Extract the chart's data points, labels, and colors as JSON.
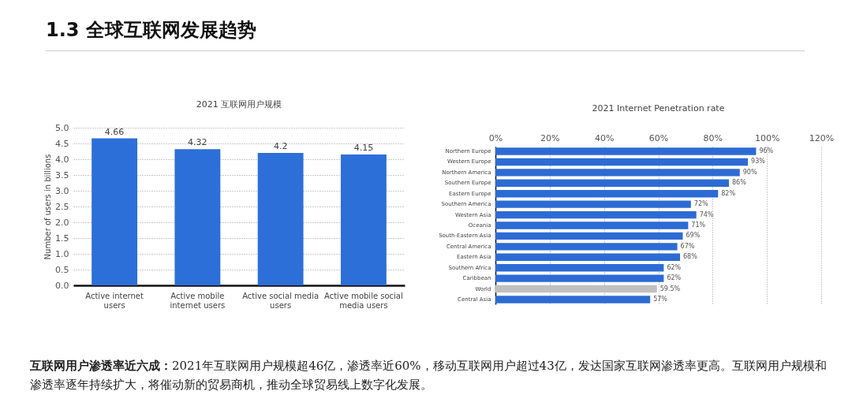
{
  "chart_data": [
    {
      "type": "bar",
      "title": "2021 互联网用户规模",
      "ylabel": "Number of users in billions",
      "annotations": [
        "1.3 全球互联网发展趋势"
      ],
      "categories": [
        "Active internet users",
        "Active mobile internet users",
        "Active social media users",
        "Active mobile social media users"
      ],
      "values": [
        4.66,
        4.32,
        4.2,
        4.15
      ],
      "color": "#2d6fd8",
      "ylim": [
        0,
        5
      ],
      "yticks": [
        {
          "value": 0,
          "label": "0.0"
        },
        {
          "value": 0.5,
          "label": "0.5"
        },
        {
          "value": 1,
          "label": "1.0"
        },
        {
          "value": 1.5,
          "label": "1.5"
        },
        {
          "value": 2,
          "label": "2.0"
        },
        {
          "value": 2.5,
          "label": "2.5"
        },
        {
          "value": 3,
          "label": "3.0"
        },
        {
          "value": 3.5,
          "label": "3.5"
        },
        {
          "value": 4,
          "label": "4.0"
        },
        {
          "value": 4.5,
          "label": "4.5"
        },
        {
          "value": 5,
          "label": "5.0"
        }
      ],
      "grid": "y",
      "data_labels": true
    },
    {
      "type": "bar",
      "orientation": "horizontal",
      "title": "2021 Internet  Penetration  rate",
      "annotations": [
        "互联网用户渗透率近六成：",
        "2021年互联网用户规模超46亿，渗透率近60%，移动互联网用户超过43亿，发达国家互联网渗透率更高。互联网用户规模和渗透率逐年持续扩大，将催动新的贸易商机，推动全球贸易线上数字化发展。"
      ],
      "categories": [
        "Northern Europe",
        "Western Europe",
        "Northern America",
        "Southern Europe",
        "Eastern Europe",
        "Southern America",
        "Western Asia",
        "Oceania",
        "South-Eastern Asia",
        "Central America",
        "Eastern Asia",
        "Southern Africa",
        "Caribbean",
        "World",
        "Central Asia"
      ],
      "values": [
        96,
        93,
        90,
        86,
        82,
        72,
        74,
        71,
        69,
        67,
        68,
        62,
        62,
        59.5,
        57
      ],
      "colors": [
        "#2d6bd4",
        "#2d6bd4",
        "#2d6bd4",
        "#2d6bd4",
        "#2d6bd4",
        "#2d6bd4",
        "#2d6bd4",
        "#2d6bd4",
        "#2d6bd4",
        "#2d6bd4",
        "#2d6bd4",
        "#2d6bd4",
        "#2d6bd4",
        "#c0c0c0",
        "#2d6bd4"
      ],
      "value_labels": [
        "96%",
        "93%",
        "90%",
        "86%",
        "82%",
        "72%",
        "74%",
        "71%",
        "69%",
        "67%",
        "68%",
        "62%",
        "62%",
        "59.5%",
        "57%"
      ],
      "xlim": [
        0,
        120
      ],
      "xticks": [
        {
          "value": 0,
          "label": "0%"
        },
        {
          "value": 20,
          "label": "20%"
        },
        {
          "value": 40,
          "label": "40%"
        },
        {
          "value": 60,
          "label": "60%"
        },
        {
          "value": 80,
          "label": "80%"
        },
        {
          "value": 100,
          "label": "100%"
        },
        {
          "value": 120,
          "label": "120%"
        }
      ],
      "grid": "x"
    }
  ]
}
